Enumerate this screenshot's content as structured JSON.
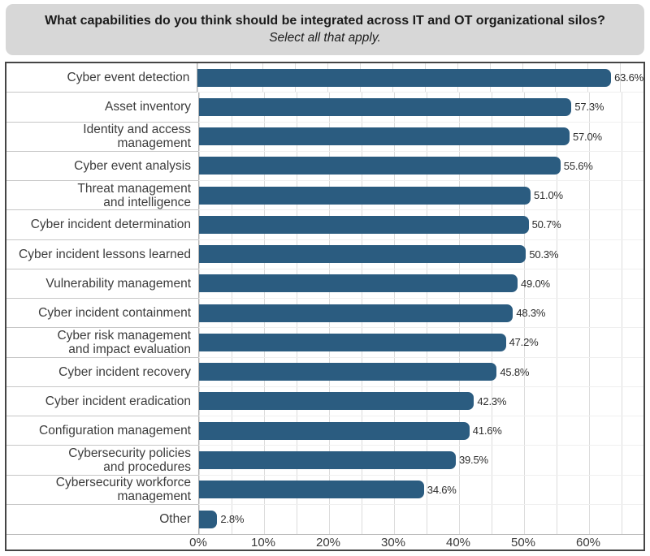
{
  "header": {
    "title": "What capabilities do you think should be integrated across IT and OT organizational silos?",
    "subtitle": "Select all that apply."
  },
  "chart_data": {
    "type": "bar",
    "orientation": "horizontal",
    "title": "What capabilities do you think should be integrated across IT and OT organizational silos?",
    "subtitle": "Select all that apply.",
    "categories": [
      "Cyber event detection",
      "Asset inventory",
      "Identity and access management",
      "Cyber event analysis",
      "Threat management\nand intelligence",
      "Cyber incident determination",
      "Cyber incident lessons learned",
      "Vulnerability management",
      "Cyber incident containment",
      "Cyber risk management\nand impact evaluation",
      "Cyber incident recovery",
      "Cyber incident eradication",
      "Configuration management",
      "Cybersecurity policies\nand procedures",
      "Cybersecurity workforce\nmanagement",
      "Other"
    ],
    "values": [
      63.6,
      57.3,
      57.0,
      55.6,
      51.0,
      50.7,
      50.3,
      49.0,
      48.3,
      47.2,
      45.8,
      42.3,
      41.6,
      39.5,
      34.6,
      2.8
    ],
    "value_labels": [
      "63.6%",
      "57.3%",
      "57.0%",
      "55.6%",
      "51.0%",
      "50.7%",
      "50.3%",
      "49.0%",
      "48.3%",
      "47.2%",
      "45.8%",
      "42.3%",
      "41.6%",
      "39.5%",
      "34.6%",
      "2.8%"
    ],
    "xlabel": "",
    "ylabel": "",
    "x_ticks": [
      "0%",
      "10%",
      "20%",
      "30%",
      "40%",
      "50%",
      "60%"
    ],
    "xlim": [
      0,
      68.5
    ],
    "grid": "vertical gridlines every 5%",
    "legend": "none",
    "bar_color": "#2b5c80",
    "colors": {
      "header_bg": "#d7d7d7",
      "chart_border": "#454545",
      "gridline": "#dcdcdc",
      "axis_line": "#b5b5b5",
      "label_text": "#3c3c3c"
    }
  }
}
